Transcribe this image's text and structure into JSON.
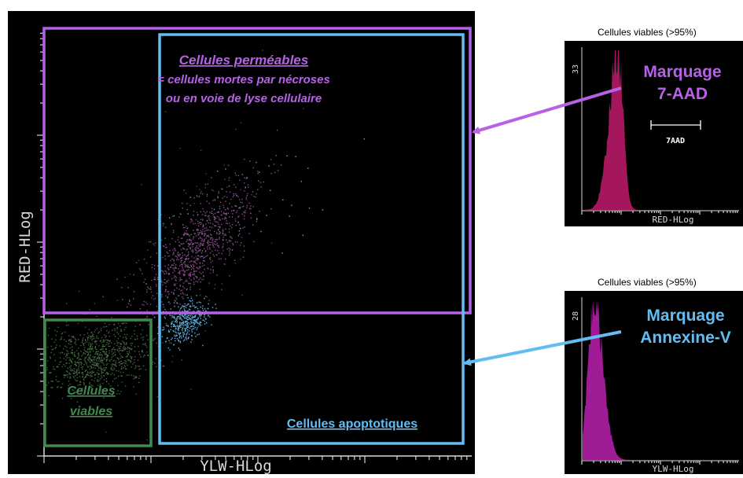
{
  "colors": {
    "permeable": "#b760e8",
    "apoptotic": "#62bdf2",
    "viable": "#3e8a4f",
    "hist_7aad": "#a4175d",
    "hist_annexin": "#a01b96",
    "axis": "#d8d8d8"
  },
  "main_plot": {
    "xlabel": "YLW-HLog",
    "ylabel": "RED-HLog",
    "permeable_gate": {
      "title": "Cellules perméables",
      "line1": "= cellules mortes par nécroses",
      "line2": "ou en voie de lyse cellulaire"
    },
    "apoptotic_gate": {
      "label": "Cellules apoptotiques"
    },
    "viable_gate": {
      "line1": "Cellules",
      "line2": "viables"
    }
  },
  "chart_data": [
    {
      "type": "scatter",
      "title": "",
      "xlabel": "YLW-HLog",
      "ylabel": "RED-HLog",
      "gates": [
        "Cellules perméables",
        "Cellules apoptotiques",
        "Cellules viables"
      ],
      "legend": "none",
      "grid": false
    },
    {
      "type": "histogram",
      "caption": "Cellules viables (>95%)",
      "xlabel": "RED-HLog",
      "ymax_label": "33",
      "marker": "7AAD",
      "annotation": [
        "Marquage",
        "7-AAD"
      ]
    },
    {
      "type": "histogram",
      "caption": "Cellules viables (>95%)",
      "xlabel": "YLW-HLog",
      "ymax_label": "28",
      "annotation": [
        "Marquage",
        "Annexine-V"
      ]
    }
  ]
}
